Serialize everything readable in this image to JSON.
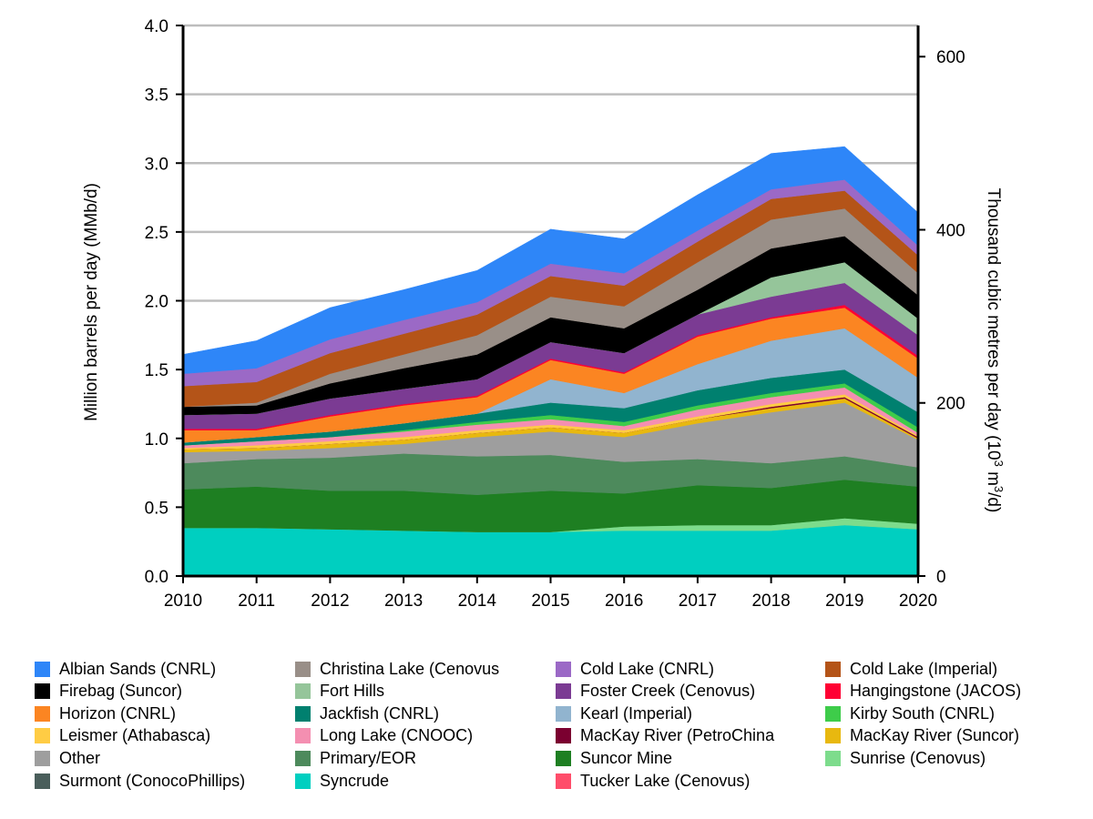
{
  "chart_data": {
    "type": "area",
    "stacked": true,
    "x": [
      2010,
      2011,
      2012,
      2013,
      2014,
      2015,
      2016,
      2017,
      2018,
      2019,
      2020
    ],
    "ylabel": "Million barrels per day (MMb/d)",
    "y2label_prefix": "Thousand cubic metres per day (10",
    "y2label_sup": "3",
    "y2label_mid": " m",
    "y2label_sup2": "3",
    "y2label_suffix": "/d)",
    "ylim": [
      0,
      4.0
    ],
    "y2lim": [
      0,
      636
    ],
    "yticks": [
      "0.0",
      "0.5",
      "1.0",
      "1.5",
      "2.0",
      "2.5",
      "3.0",
      "3.5",
      "4.0"
    ],
    "y2ticks": [
      "0",
      "200",
      "400",
      "600"
    ],
    "grid": "horizontal",
    "legend_position": "bottom",
    "series": [
      {
        "name": "Syncrude",
        "color": "#00cfc0",
        "values": [
          0.35,
          0.35,
          0.34,
          0.33,
          0.32,
          0.32,
          0.33,
          0.33,
          0.33,
          0.37,
          0.34
        ]
      },
      {
        "name": "Sunrise (Cenovus)",
        "color": "#7ddc8c",
        "values": [
          0,
          0,
          0,
          0,
          0,
          0,
          0.03,
          0.04,
          0.04,
          0.05,
          0.04
        ]
      },
      {
        "name": "Suncor Mine",
        "color": "#1e7f22",
        "values": [
          0.28,
          0.3,
          0.28,
          0.29,
          0.27,
          0.3,
          0.24,
          0.29,
          0.27,
          0.28,
          0.27
        ]
      },
      {
        "name": "Primary/EOR",
        "color": "#4d8a5c",
        "values": [
          0.19,
          0.2,
          0.24,
          0.27,
          0.28,
          0.26,
          0.23,
          0.19,
          0.18,
          0.17,
          0.14
        ]
      },
      {
        "name": "Other",
        "color": "#9e9e9e",
        "values": [
          0.08,
          0.06,
          0.07,
          0.07,
          0.14,
          0.17,
          0.18,
          0.26,
          0.37,
          0.39,
          0.2
        ]
      },
      {
        "name": "MacKay River (Suncor)",
        "color": "#e8b80f",
        "values": [
          0.02,
          0.02,
          0.03,
          0.03,
          0.03,
          0.03,
          0.03,
          0.03,
          0.03,
          0.03,
          0.01
        ]
      },
      {
        "name": "MacKay River (PetroChina",
        "color": "#7b0030",
        "values": [
          0,
          0,
          0,
          0,
          0,
          0,
          0,
          0,
          0.01,
          0.01,
          0.01
        ]
      },
      {
        "name": "Leismer (Athabasca)",
        "color": "#ffcc44",
        "values": [
          0.01,
          0.02,
          0.02,
          0.02,
          0.02,
          0.02,
          0.02,
          0.02,
          0.02,
          0.02,
          0.01
        ]
      },
      {
        "name": "Long Lake (CNOOC)",
        "color": "#f48fb1",
        "values": [
          0.02,
          0.03,
          0.03,
          0.04,
          0.04,
          0.04,
          0.03,
          0.05,
          0.05,
          0.05,
          0.02
        ]
      },
      {
        "name": "Kirby South (CNRL)",
        "color": "#3ecc4a",
        "values": [
          0,
          0,
          0,
          0.01,
          0.02,
          0.03,
          0.03,
          0.03,
          0.03,
          0.03,
          0.04
        ]
      },
      {
        "name": "Jackfish (CNRL)",
        "color": "#00806f",
        "values": [
          0.02,
          0.03,
          0.04,
          0.05,
          0.06,
          0.09,
          0.1,
          0.11,
          0.11,
          0.1,
          0.11
        ]
      },
      {
        "name": "Kearl (Imperial)",
        "color": "#91b4cf",
        "values": [
          0,
          0,
          0,
          0,
          0,
          0.17,
          0.11,
          0.19,
          0.27,
          0.3,
          0.25
        ]
      },
      {
        "name": "Horizon (CNRL)",
        "color": "#fb8522",
        "values": [
          0.09,
          0.05,
          0.11,
          0.13,
          0.12,
          0.14,
          0.14,
          0.2,
          0.16,
          0.15,
          0.14
        ]
      },
      {
        "name": "Hangingstone (JACOS)",
        "color": "#ff0033",
        "values": [
          0.01,
          0.01,
          0.01,
          0.01,
          0.01,
          0.01,
          0.01,
          0.01,
          0.01,
          0.02,
          0.02
        ]
      },
      {
        "name": "Foster Creek (Cenovus)",
        "color": "#7b3b93",
        "values": [
          0.1,
          0.11,
          0.12,
          0.11,
          0.12,
          0.12,
          0.14,
          0.15,
          0.15,
          0.16,
          0.15
        ]
      },
      {
        "name": "Fort Hills",
        "color": "#95c59a",
        "values": [
          0,
          0,
          0,
          0,
          0,
          0,
          0,
          0,
          0.14,
          0.15,
          0.12
        ]
      },
      {
        "name": "Firebag (Suncor)",
        "color": "#000000",
        "values": [
          0.06,
          0.06,
          0.11,
          0.15,
          0.18,
          0.18,
          0.18,
          0.18,
          0.21,
          0.19,
          0.17
        ]
      },
      {
        "name": "Christina Lake (Cenovus",
        "color": "#998f88",
        "values": [
          0,
          0.02,
          0.07,
          0.1,
          0.14,
          0.15,
          0.16,
          0.2,
          0.21,
          0.2,
          0.16
        ]
      },
      {
        "name": "Cold Lake (Imperial)",
        "color": "#b45418",
        "values": [
          0.15,
          0.15,
          0.15,
          0.15,
          0.15,
          0.15,
          0.15,
          0.15,
          0.15,
          0.13,
          0.13
        ]
      },
      {
        "name": "Cold Lake (CNRL)",
        "color": "#9b69c6",
        "values": [
          0.09,
          0.1,
          0.1,
          0.1,
          0.09,
          0.09,
          0.09,
          0.08,
          0.07,
          0.08,
          0.07
        ]
      },
      {
        "name": "Surmont (ConocoPhillips)",
        "color": "#4a5e5b",
        "values": [
          0,
          0,
          0,
          0,
          0,
          0,
          0,
          0,
          0,
          0,
          0
        ]
      },
      {
        "name": "Tucker Lake (Cenovus)",
        "color": "#ff4d6a",
        "values": [
          0,
          0,
          0,
          0,
          0,
          0,
          0,
          0,
          0,
          0,
          0
        ]
      },
      {
        "name": "Albian Sands (CNRL)",
        "color": "#2e86f8",
        "values": [
          0.14,
          0.2,
          0.23,
          0.22,
          0.23,
          0.25,
          0.25,
          0.26,
          0.26,
          0.24,
          0.24
        ]
      }
    ],
    "legend": [
      [
        "Albian Sands (CNRL)",
        "Christina Lake (Cenovus",
        "Cold Lake (CNRL)",
        "Cold Lake (Imperial)"
      ],
      [
        "Firebag (Suncor)",
        "Fort Hills",
        "Foster Creek (Cenovus)",
        "Hangingstone (JACOS)"
      ],
      [
        "Horizon (CNRL)",
        "Jackfish (CNRL)",
        "Kearl (Imperial)",
        "Kirby South (CNRL)"
      ],
      [
        "Leismer (Athabasca)",
        "Long Lake (CNOOC)",
        "MacKay River (PetroChina",
        "MacKay River (Suncor)"
      ],
      [
        "Other",
        "Primary/EOR",
        "Suncor Mine",
        "Sunrise (Cenovus)"
      ],
      [
        "Surmont (ConocoPhillips)",
        "Syncrude",
        "Tucker Lake (Cenovus)"
      ]
    ]
  }
}
